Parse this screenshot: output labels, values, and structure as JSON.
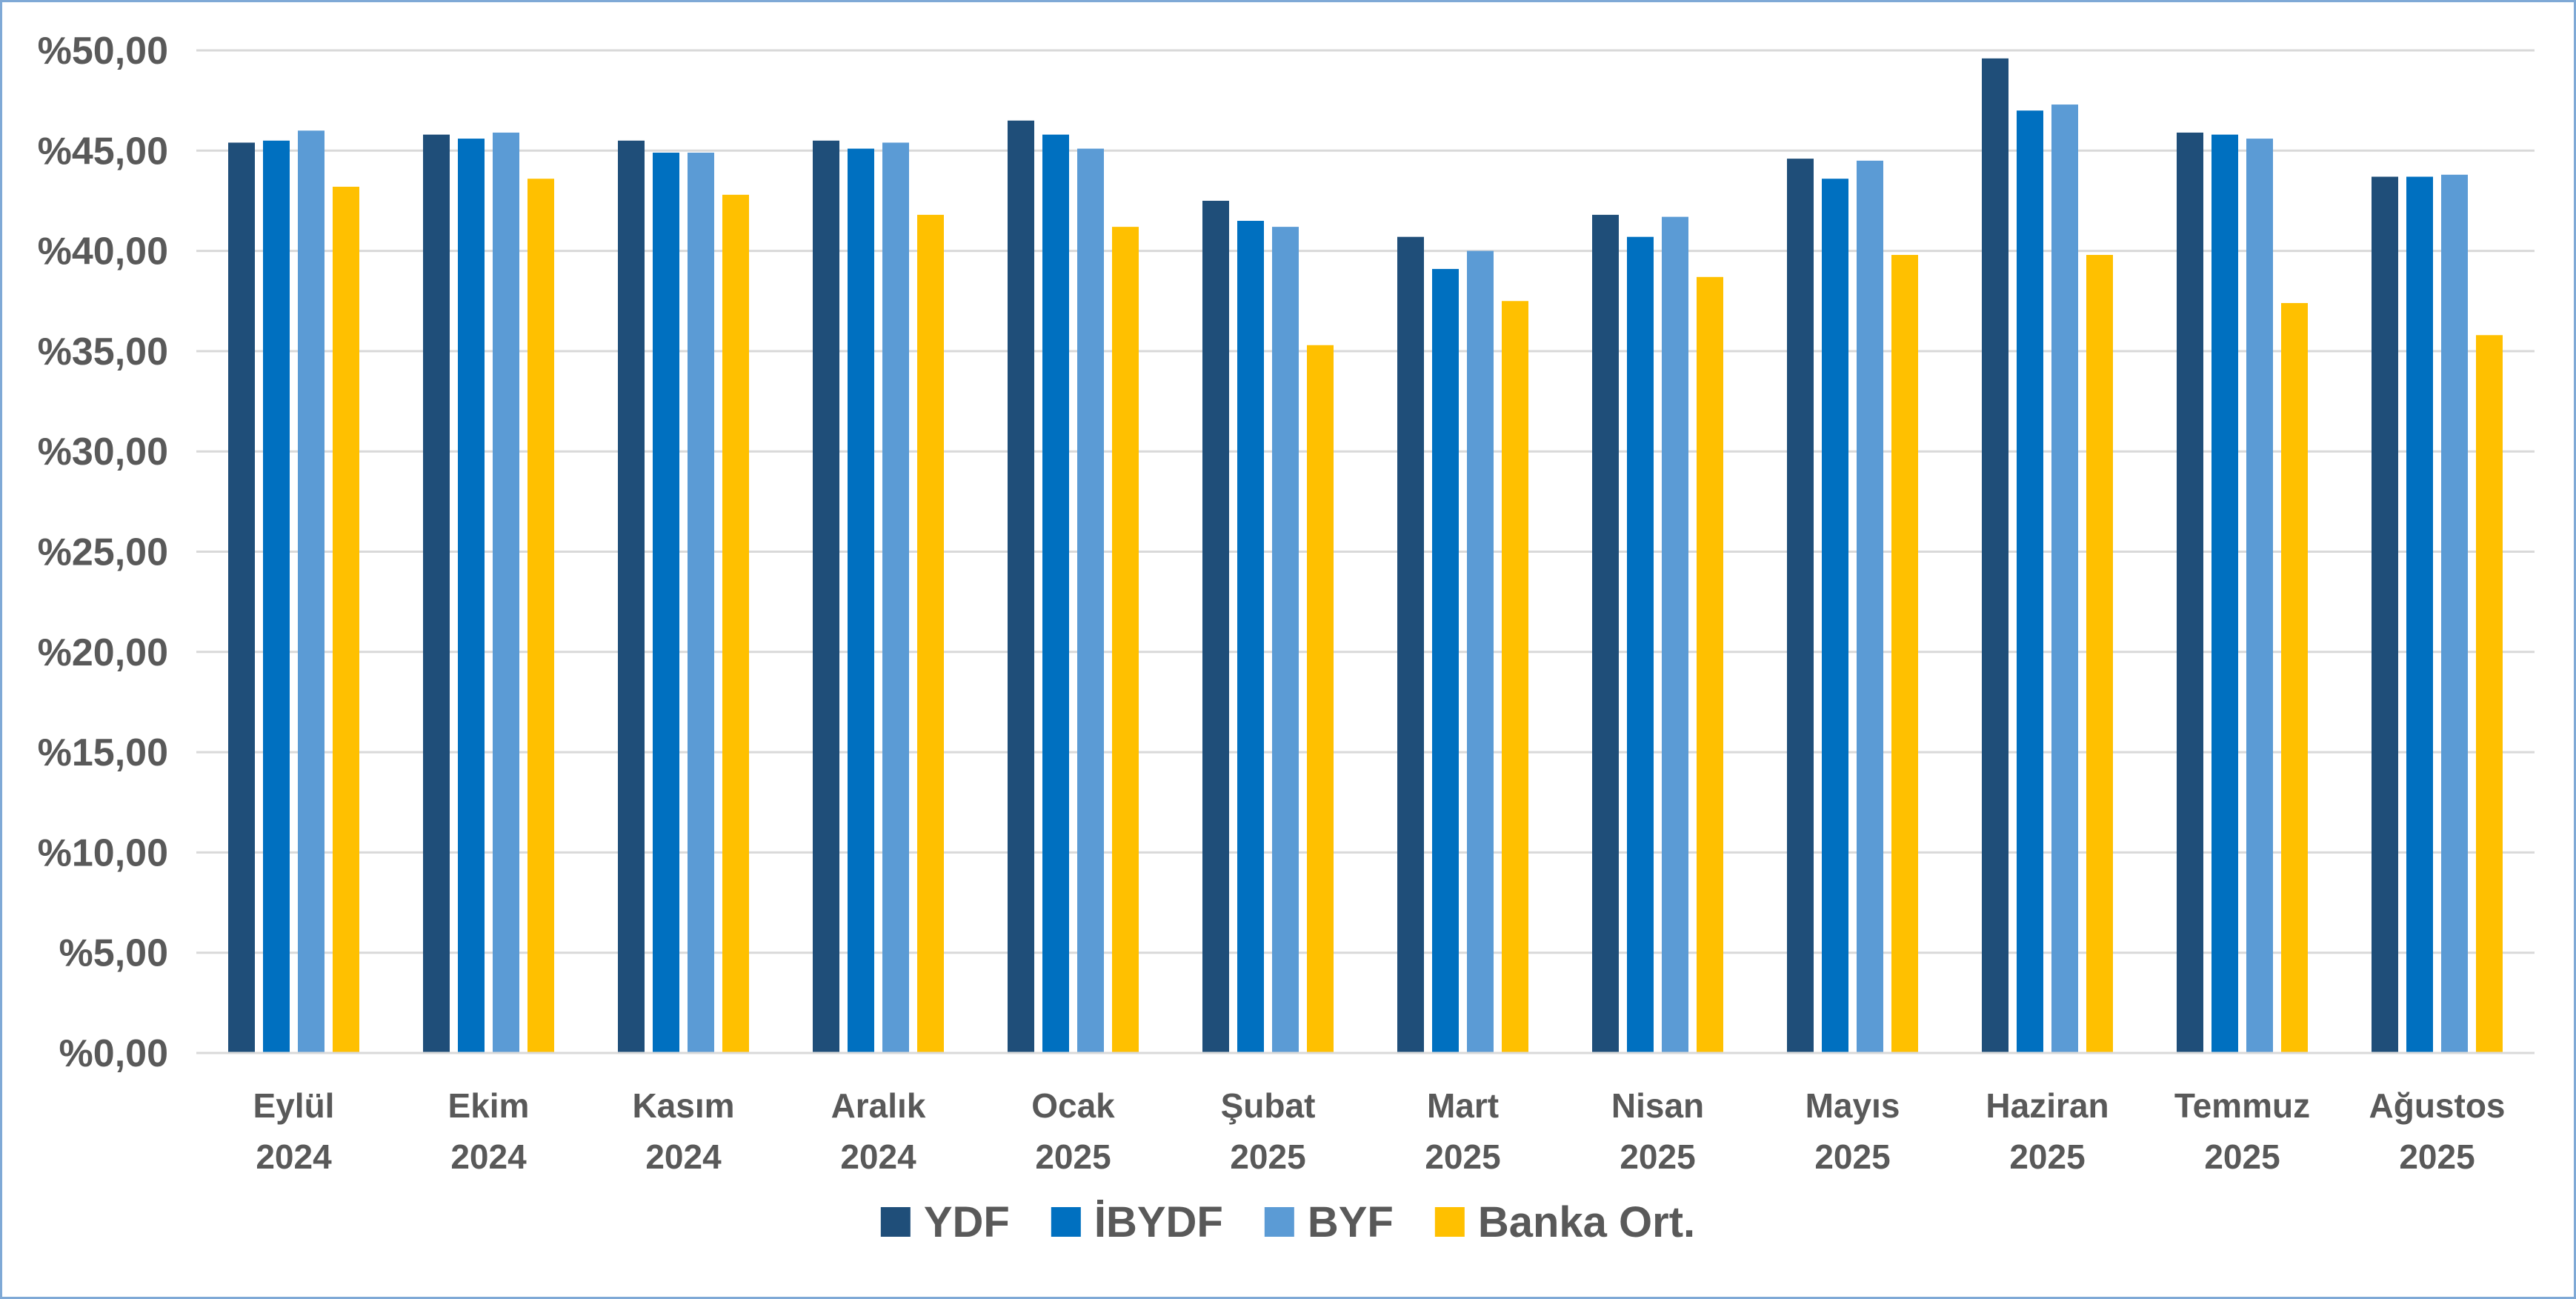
{
  "chart_data": {
    "type": "bar",
    "title": "",
    "xlabel": "",
    "ylabel": "",
    "ylim": [
      0,
      50
    ],
    "y_ticks": [
      "%0,00",
      "%5,00",
      "%10,00",
      "%15,00",
      "%20,00",
      "%25,00",
      "%30,00",
      "%35,00",
      "%40,00",
      "%45,00",
      "%50,00"
    ],
    "grid": true,
    "legend_position": "bottom",
    "categories": [
      {
        "month": "Eylül",
        "year": "2024"
      },
      {
        "month": "Ekim",
        "year": "2024"
      },
      {
        "month": "Kasım",
        "year": "2024"
      },
      {
        "month": "Aralık",
        "year": "2024"
      },
      {
        "month": "Ocak",
        "year": "2025"
      },
      {
        "month": "Şubat",
        "year": "2025"
      },
      {
        "month": "Mart",
        "year": "2025"
      },
      {
        "month": "Nisan",
        "year": "2025"
      },
      {
        "month": "Mayıs",
        "year": "2025"
      },
      {
        "month": "Haziran",
        "year": "2025"
      },
      {
        "month": "Temmuz",
        "year": "2025"
      },
      {
        "month": "Ağustos",
        "year": "2025"
      }
    ],
    "series": [
      {
        "name": "YDF",
        "color": "#1f4e79",
        "values": [
          45.4,
          45.8,
          45.5,
          45.5,
          46.5,
          42.5,
          40.7,
          41.8,
          44.6,
          49.6,
          45.9,
          43.7
        ]
      },
      {
        "name": "İBYDF",
        "color": "#0070c0",
        "values": [
          45.5,
          45.6,
          44.9,
          45.1,
          45.8,
          41.5,
          39.1,
          40.7,
          43.6,
          47.0,
          45.8,
          43.7
        ]
      },
      {
        "name": "BYF",
        "color": "#5b9bd5",
        "values": [
          46.0,
          45.9,
          44.9,
          45.4,
          45.1,
          41.2,
          40.0,
          41.7,
          44.5,
          47.3,
          45.6,
          43.8
        ]
      },
      {
        "name": "Banka Ort.",
        "color": "#ffc000",
        "values": [
          43.2,
          43.6,
          42.8,
          41.8,
          41.2,
          35.3,
          37.5,
          38.7,
          39.8,
          39.8,
          37.4,
          35.8
        ]
      }
    ]
  }
}
